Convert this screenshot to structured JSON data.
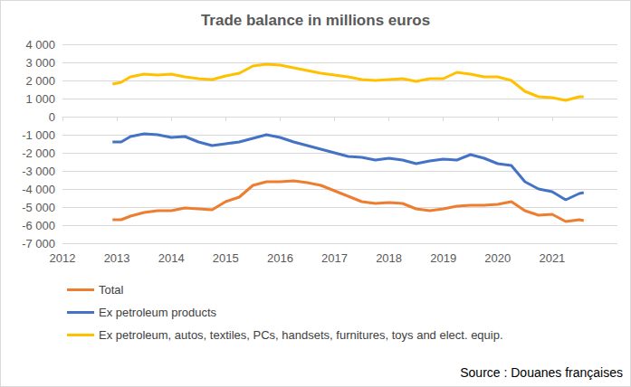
{
  "chart_data": {
    "type": "line",
    "title": "Trade balance in millions euros",
    "source": "Source : Douanes françaises",
    "x": [
      2012.92,
      2013.08,
      2013.25,
      2013.5,
      2013.75,
      2014,
      2014.25,
      2014.5,
      2014.75,
      2015,
      2015.25,
      2015.5,
      2015.75,
      2016,
      2016.25,
      2016.5,
      2016.75,
      2017,
      2017.25,
      2017.5,
      2017.75,
      2018,
      2018.25,
      2018.5,
      2018.75,
      2019,
      2019.25,
      2019.5,
      2019.75,
      2020,
      2020.25,
      2020.5,
      2020.75,
      2021,
      2021.25,
      2021.5,
      2021.58
    ],
    "series": [
      {
        "name": "Total",
        "color": "#ED7D31",
        "values": [
          -5700,
          -5700,
          -5500,
          -5300,
          -5200,
          -5200,
          -5050,
          -5100,
          -5150,
          -4700,
          -4450,
          -3800,
          -3600,
          -3600,
          -3550,
          -3650,
          -3800,
          -4100,
          -4400,
          -4700,
          -4800,
          -4750,
          -4800,
          -5100,
          -5200,
          -5100,
          -4950,
          -4900,
          -4900,
          -4850,
          -4700,
          -5200,
          -5450,
          -5400,
          -5800,
          -5700,
          -5750
        ]
      },
      {
        "name": "Ex petroleum products",
        "color": "#4472C4",
        "values": [
          -1400,
          -1400,
          -1100,
          -950,
          -1000,
          -1150,
          -1100,
          -1400,
          -1600,
          -1500,
          -1400,
          -1200,
          -1000,
          -1150,
          -1400,
          -1600,
          -1800,
          -2000,
          -2200,
          -2250,
          -2400,
          -2300,
          -2400,
          -2600,
          -2450,
          -2350,
          -2400,
          -2100,
          -2300,
          -2600,
          -2700,
          -3600,
          -4000,
          -4150,
          -4600,
          -4250,
          -4200
        ]
      },
      {
        "name": "Ex petroleum, autos, textiles, PCs, handsets, furnitures, toys and elect. equip.",
        "color": "#FFC000",
        "values": [
          1800,
          1900,
          2200,
          2350,
          2300,
          2350,
          2200,
          2100,
          2050,
          2250,
          2400,
          2800,
          2900,
          2850,
          2700,
          2550,
          2400,
          2300,
          2200,
          2050,
          2000,
          2050,
          2100,
          1950,
          2100,
          2100,
          2450,
          2350,
          2200,
          2200,
          2000,
          1400,
          1100,
          1050,
          900,
          1100,
          1100
        ]
      }
    ],
    "xlim": [
      2012,
      2022.2
    ],
    "xticks": [
      2012,
      2013,
      2014,
      2015,
      2016,
      2017,
      2018,
      2019,
      2020,
      2021
    ],
    "ylim": [
      -7000,
      4000
    ],
    "yticks": [
      {
        "value": -7000,
        "label": "-7 000"
      },
      {
        "value": -6000,
        "label": "-6 000"
      },
      {
        "value": -5000,
        "label": "-5 000"
      },
      {
        "value": -4000,
        "label": "-4 000"
      },
      {
        "value": -3000,
        "label": "-3 000"
      },
      {
        "value": -2000,
        "label": "-2 000"
      },
      {
        "value": -1000,
        "label": "-1 000"
      },
      0,
      {
        "value": 1000,
        "label": "1 000"
      },
      {
        "value": 2000,
        "label": "2 000"
      },
      {
        "value": 3000,
        "label": "3 000"
      },
      {
        "value": 4000,
        "label": "4 000"
      }
    ],
    "grid": true,
    "legend": "bottom-left"
  }
}
